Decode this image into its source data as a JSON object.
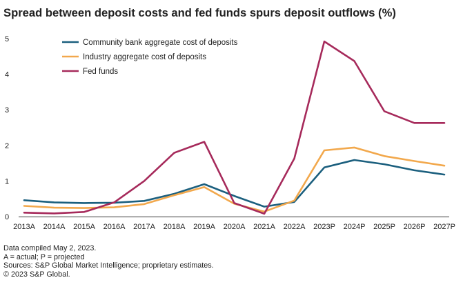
{
  "title": "Spread between deposit costs and fed funds spurs deposit outflows (%)",
  "notes": [
    "Data compiled May 2, 2023.",
    "A = actual; P = projected",
    "Sources: S&P Global Market Intelligence; proprietary estimates.",
    "© 2023 S&P Global."
  ],
  "chart_data": {
    "type": "line",
    "title": "Spread between deposit costs and fed funds spurs deposit outflows (%)",
    "xlabel": "",
    "ylabel": "",
    "ylim": [
      0,
      5
    ],
    "yticks": [
      "0",
      "1",
      "2",
      "3",
      "4",
      "5"
    ],
    "grid": false,
    "legend_position": "top-left",
    "categories": [
      "2013A",
      "2014A",
      "2015A",
      "2016A",
      "2017A",
      "2018A",
      "2019A",
      "2020A",
      "2021A",
      "2022A",
      "2023P",
      "2024P",
      "2025P",
      "2026P",
      "2027P"
    ],
    "series": [
      {
        "name": "Community bank aggregate cost of deposits",
        "color": "#1b5f7e",
        "values": [
          0.46,
          0.4,
          0.38,
          0.39,
          0.44,
          0.64,
          0.91,
          0.58,
          0.28,
          0.41,
          1.38,
          1.59,
          1.47,
          1.3,
          1.18
        ]
      },
      {
        "name": "Industry aggregate cost of deposits",
        "color": "#f2a84c",
        "values": [
          0.3,
          0.25,
          0.24,
          0.26,
          0.35,
          0.6,
          0.83,
          0.36,
          0.14,
          0.45,
          1.86,
          1.94,
          1.7,
          1.56,
          1.43
        ]
      },
      {
        "name": "Fed funds",
        "color": "#a62a5b",
        "values": [
          0.11,
          0.09,
          0.13,
          0.4,
          1.0,
          1.79,
          2.1,
          0.38,
          0.08,
          1.63,
          4.92,
          4.37,
          2.96,
          2.63,
          2.63
        ]
      }
    ]
  }
}
